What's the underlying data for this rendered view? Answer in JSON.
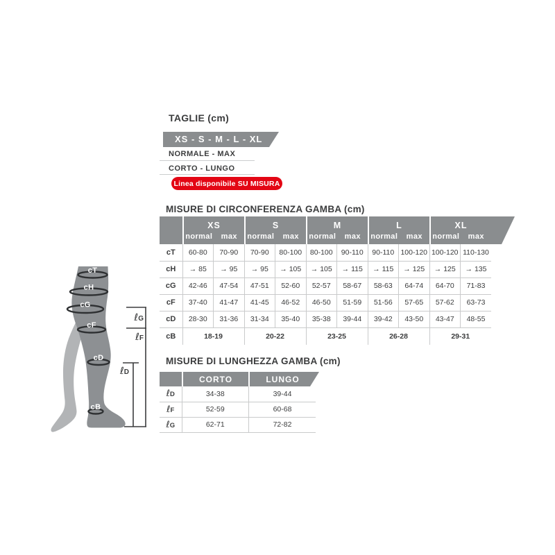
{
  "taglie": {
    "title": "TAGLIE (cm)",
    "sizes_banner": "XS - S - M - L - XL",
    "options": [
      "NORMALE - MAX",
      "CORTO - LUNGO"
    ],
    "custom_banner": "Linea disponibile SU MISURA"
  },
  "circumference_table": {
    "title": "MISURE DI CIRCONFERENZA GAMBA (cm)",
    "size_groups": [
      "XS",
      "S",
      "M",
      "L",
      "XL"
    ],
    "sub_headers": [
      "normal",
      "max"
    ],
    "rows": [
      {
        "label": "cT",
        "values": [
          "60-80",
          "70-90",
          "70-90",
          "80-100",
          "80-100",
          "90-110",
          "90-110",
          "100-120",
          "100-120",
          "110-130"
        ]
      },
      {
        "label": "cH",
        "values": [
          "→ 85",
          "→ 95",
          "→ 95",
          "→ 105",
          "→ 105",
          "→ 115",
          "→ 115",
          "→ 125",
          "→ 125",
          "→ 135"
        ]
      },
      {
        "label": "cG",
        "values": [
          "42-46",
          "47-54",
          "47-51",
          "52-60",
          "52-57",
          "58-67",
          "58-63",
          "64-74",
          "64-70",
          "71-83"
        ]
      },
      {
        "label": "cF",
        "values": [
          "37-40",
          "41-47",
          "41-45",
          "46-52",
          "46-50",
          "51-59",
          "51-56",
          "57-65",
          "57-62",
          "63-73"
        ]
      },
      {
        "label": "cD",
        "values": [
          "28-30",
          "31-36",
          "31-34",
          "35-40",
          "35-38",
          "39-44",
          "39-42",
          "43-50",
          "43-47",
          "48-55"
        ]
      },
      {
        "label": "cB",
        "span": 2,
        "values": [
          "18-19",
          "20-22",
          "23-25",
          "26-28",
          "29-31"
        ]
      }
    ]
  },
  "length_table": {
    "title": "MISURE DI LUNGHEZZA GAMBA (cm)",
    "columns": [
      "CORTO",
      "LUNGO"
    ],
    "rows": [
      {
        "symbol": "ℓ",
        "letter": "D",
        "corto": "34-38",
        "lungo": "39-44"
      },
      {
        "symbol": "ℓ",
        "letter": "F",
        "corto": "52-59",
        "lungo": "60-68"
      },
      {
        "symbol": "ℓ",
        "letter": "G",
        "corto": "62-71",
        "lungo": "72-82"
      }
    ]
  },
  "leg_diagram": {
    "bands": [
      "cT",
      "cH",
      "cG",
      "cF",
      "cD",
      "cB"
    ],
    "length_labels": [
      {
        "symbol": "ℓ",
        "letter": "G"
      },
      {
        "symbol": "ℓ",
        "letter": "F"
      },
      {
        "symbol": "ℓ",
        "letter": "D"
      }
    ]
  },
  "colors": {
    "header_gray": "#8a8d8f",
    "accent_red": "#e30614",
    "text_dark": "#3b3c3d",
    "grid_line": "#c9cacb",
    "leg_front": "#8d9093",
    "leg_rear": "#b2b4b6"
  }
}
